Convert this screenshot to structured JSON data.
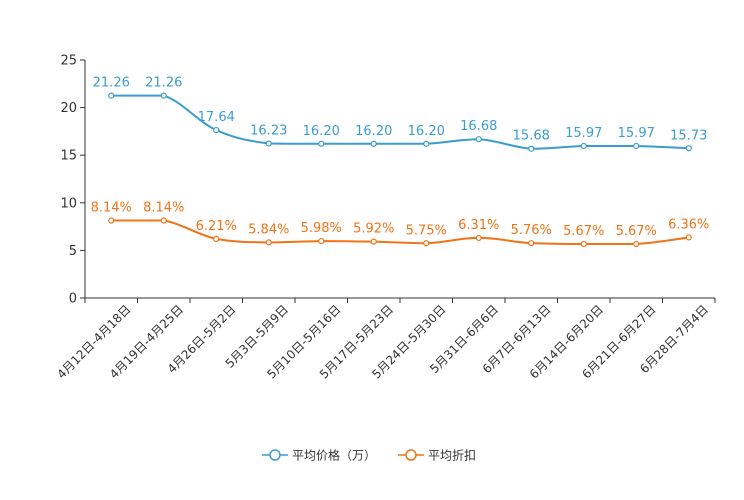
{
  "chart_data": {
    "type": "line",
    "categories": [
      "4月12日-4月18日",
      "4月19日-4月25日",
      "4月26日-5月2日",
      "5月3日-5月9日",
      "5月10日-5月16日",
      "5月17日-5月23日",
      "5月24日-5月30日",
      "5月31日-6月6日",
      "6月7日-6月13日",
      "6月14日-6月20日",
      "6月21日-6月27日",
      "6月28日-7月4日"
    ],
    "ylim": [
      0,
      25
    ],
    "yticks": [
      0,
      5,
      10,
      15,
      20,
      25
    ],
    "ytick_labels": [
      "0",
      "5",
      "10",
      "15",
      "20",
      "25"
    ],
    "grid": false,
    "legend_position": "bottom-center",
    "series": [
      {
        "name": "平均价格（万）",
        "color": "#3a9dcf",
        "values": [
          21.26,
          21.26,
          17.64,
          16.23,
          16.2,
          16.2,
          16.2,
          16.68,
          15.68,
          15.97,
          15.97,
          15.73
        ],
        "labels": [
          "21.26",
          "21.26",
          "17.64",
          "16.23",
          "16.20",
          "16.20",
          "16.20",
          "16.68",
          "15.68",
          "15.97",
          "15.97",
          "15.73"
        ]
      },
      {
        "name": "平均折扣",
        "color": "#f07318",
        "values": [
          8.14,
          8.14,
          6.21,
          5.84,
          5.98,
          5.92,
          5.75,
          6.31,
          5.76,
          5.67,
          5.67,
          6.36
        ],
        "labels": [
          "8.14%",
          "8.14%",
          "6.21%",
          "5.84%",
          "5.98%",
          "5.92%",
          "5.75%",
          "6.31%",
          "5.76%",
          "5.67%",
          "5.67%",
          "6.36%"
        ]
      }
    ]
  }
}
